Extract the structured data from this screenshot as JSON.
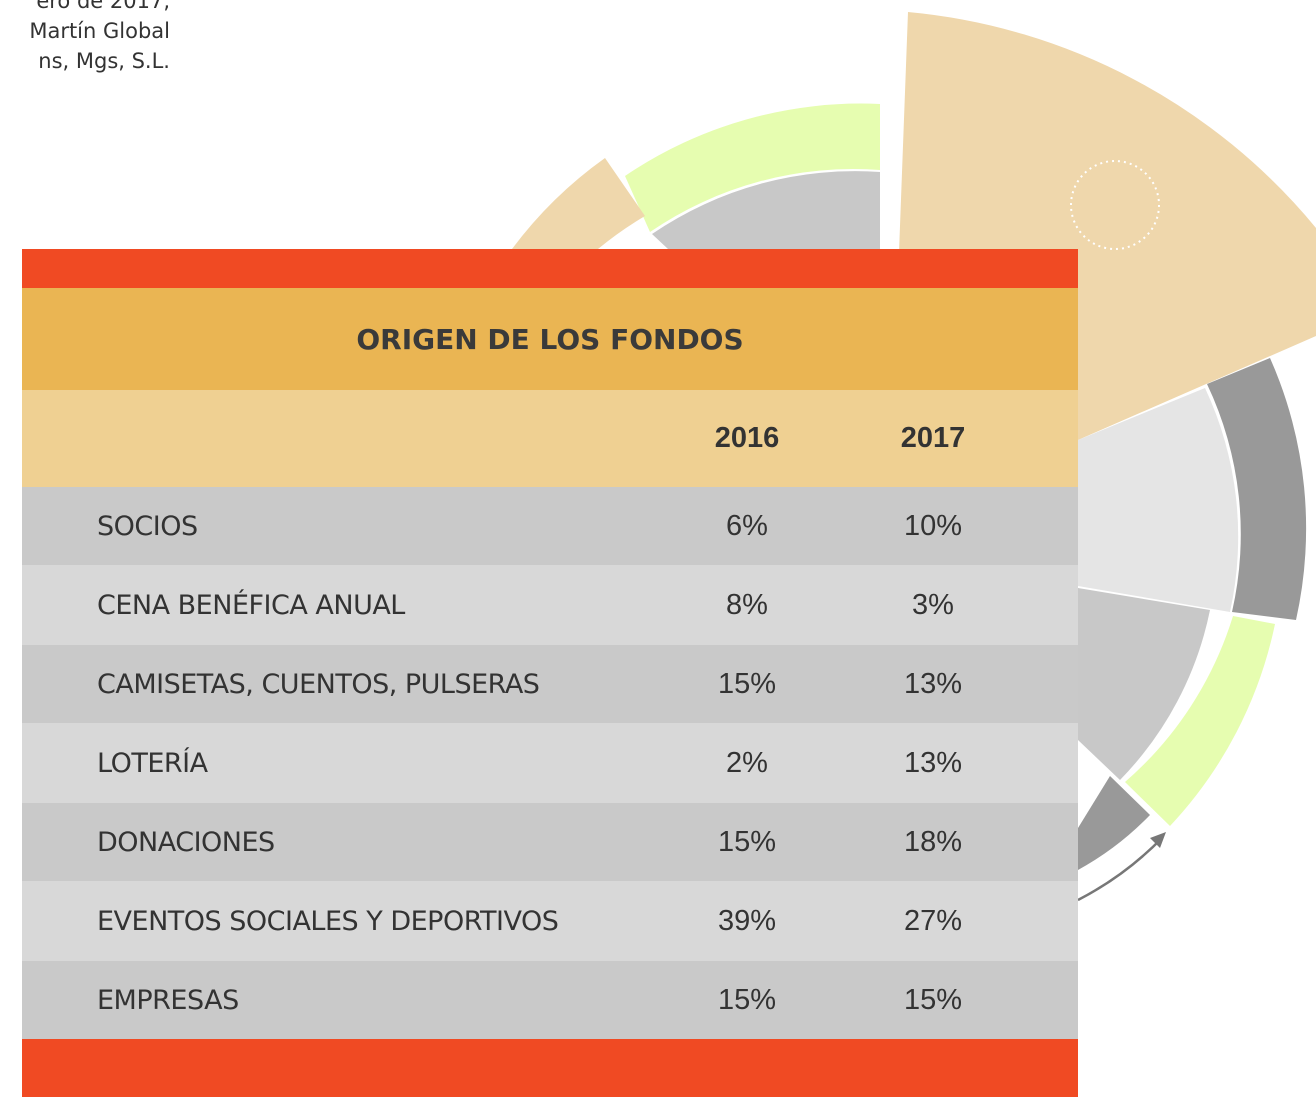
{
  "note": {
    "lines": [
      "ero de 2017,",
      "Martín Global",
      "ns, Mgs, S.L."
    ]
  },
  "table": {
    "title": "ORIGEN DE LOS FONDOS",
    "columns": [
      "2016",
      "2017"
    ],
    "rows": [
      [
        "SOCIOS",
        "6%",
        "10%"
      ],
      [
        "CENA BENÉFICA ANUAL",
        "8%",
        "3%"
      ],
      [
        "CAMISETAS, CUENTOS, PULSERAS",
        "15%",
        "13%"
      ],
      [
        "LOTERÍA",
        "2%",
        "13%"
      ],
      [
        "DONACIONES",
        "15%",
        "18%"
      ],
      [
        "EVENTOS SOCIALES Y DEPORTIVOS",
        "39%",
        "27%"
      ],
      [
        "EMPRESAS",
        "15%",
        "15%"
      ]
    ]
  }
}
